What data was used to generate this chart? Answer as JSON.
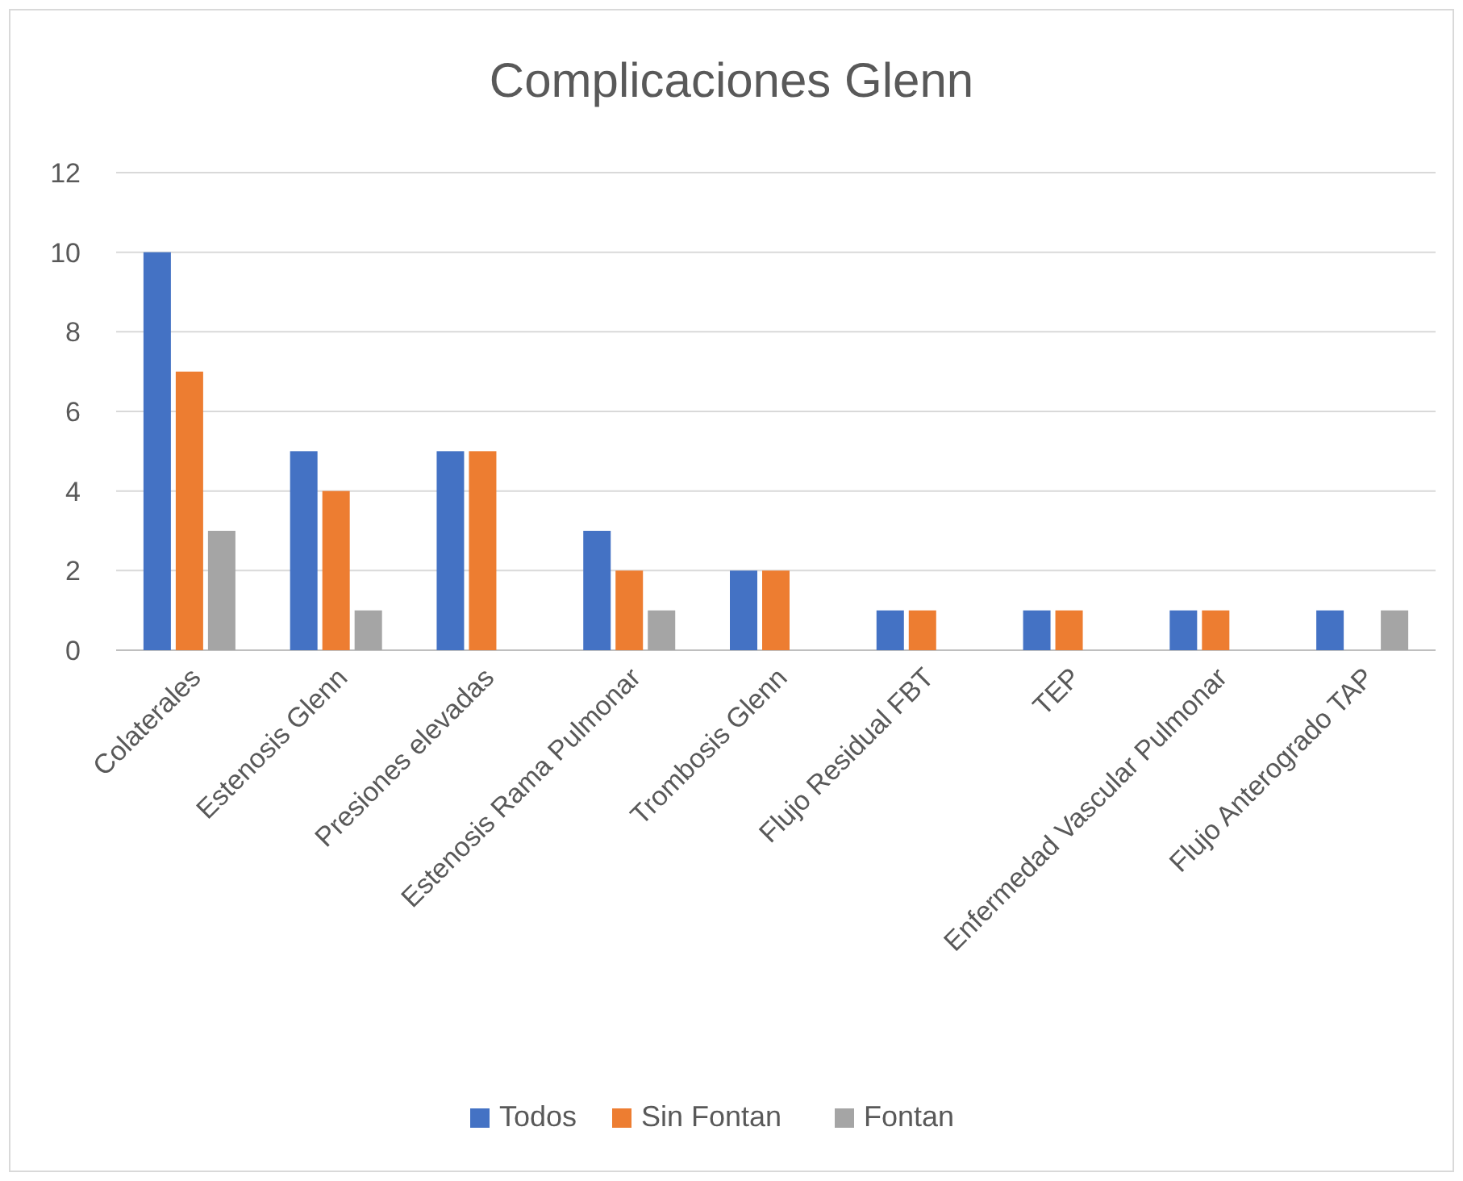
{
  "chart_data": {
    "type": "bar",
    "title": "Complicaciones Glenn",
    "categories": [
      "Colaterales",
      "Estenosis Glenn",
      "Presiones elevadas",
      "Estenosis Rama Pulmonar",
      "Trombosis Glenn",
      "Flujo Residual FBT",
      "TEP",
      "Enfermedad Vascular Pulmonar",
      "Flujo Anterogrado TAP"
    ],
    "series": [
      {
        "name": "Todos",
        "color": "#4472c4",
        "values": [
          10,
          5,
          5,
          3,
          2,
          1,
          1,
          1,
          1
        ]
      },
      {
        "name": "Sin Fontan",
        "color": "#ed7d31",
        "values": [
          7,
          4,
          5,
          2,
          2,
          1,
          1,
          1,
          null
        ]
      },
      {
        "name": "Fontan",
        "color": "#a5a5a5",
        "values": [
          3,
          1,
          null,
          1,
          null,
          null,
          null,
          null,
          1
        ]
      }
    ],
    "ylim": [
      0,
      12
    ],
    "yticks": [
      0,
      2,
      4,
      6,
      8,
      10,
      12
    ],
    "grid": "y",
    "legend": "bottom"
  }
}
